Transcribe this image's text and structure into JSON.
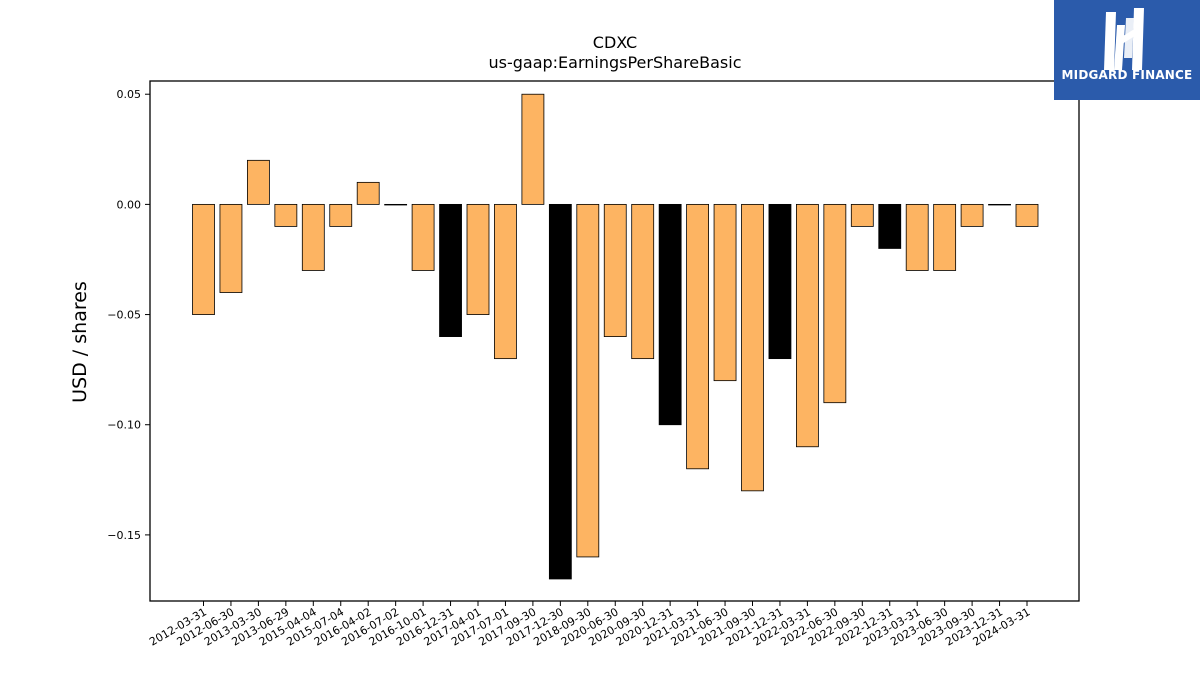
{
  "brand": {
    "name": "MIDGARD FINANCE",
    "background": "#2b5bab"
  },
  "chart_data": {
    "type": "bar",
    "title": "CDXC",
    "subtitle": "us-gaap:EarningsPerShareBasic",
    "xlabel": "",
    "ylabel": "USD / shares",
    "ylim": [
      -0.18,
      0.056
    ],
    "yticks": [
      0.05,
      0.0,
      -0.05,
      -0.1,
      -0.15
    ],
    "ytick_labels": [
      "0.05",
      "0.00",
      "−0.05",
      "−0.10",
      "−0.15"
    ],
    "grid": false,
    "legend": "none",
    "colors": {
      "default": "#fdb462",
      "highlight": "#000000",
      "edge": "#000000"
    },
    "categories": [
      "2012-03-31",
      "2012-06-30",
      "2013-03-30",
      "2013-06-29",
      "2015-04-04",
      "2015-07-04",
      "2016-04-02",
      "2016-07-02",
      "2016-10-01",
      "2016-12-31",
      "2017-04-01",
      "2017-07-01",
      "2017-09-30",
      "2017-12-30",
      "2018-09-30",
      "2020-06-30",
      "2020-09-30",
      "2020-12-31",
      "2021-03-31",
      "2021-06-30",
      "2021-09-30",
      "2021-12-31",
      "2022-03-31",
      "2022-06-30",
      "2022-09-30",
      "2022-12-31",
      "2023-03-31",
      "2023-06-30",
      "2023-09-30",
      "2023-12-31",
      "2024-03-31"
    ],
    "values": [
      -0.05,
      -0.04,
      0.02,
      -0.01,
      -0.03,
      -0.01,
      0.01,
      0.0,
      -0.03,
      -0.06,
      -0.05,
      -0.07,
      0.05,
      -0.17,
      -0.16,
      -0.06,
      -0.07,
      -0.1,
      -0.12,
      -0.08,
      -0.13,
      -0.07,
      -0.11,
      -0.09,
      -0.01,
      -0.02,
      -0.03,
      -0.03,
      -0.01,
      0.0,
      -0.01
    ],
    "highlighted": [
      false,
      false,
      false,
      false,
      false,
      false,
      false,
      false,
      false,
      true,
      false,
      false,
      false,
      true,
      false,
      false,
      false,
      true,
      false,
      false,
      false,
      true,
      false,
      false,
      false,
      true,
      false,
      false,
      false,
      false,
      false
    ]
  }
}
